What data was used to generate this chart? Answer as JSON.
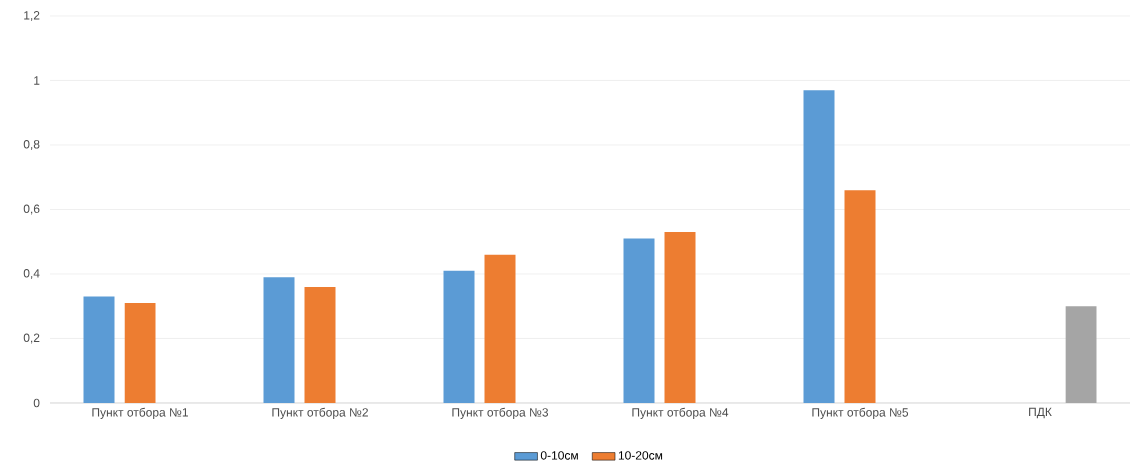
{
  "chart_data": {
    "type": "bar",
    "categories": [
      "Пункт отбора №1",
      "Пункт отбора №2",
      "Пункт отбора №3",
      "Пункт отбора №4",
      "Пункт отбора №5",
      "ПДК"
    ],
    "series": [
      {
        "name": "0-10см",
        "color": "#5b9bd5",
        "values": [
          0.33,
          0.39,
          0.41,
          0.51,
          0.97,
          null
        ]
      },
      {
        "name": "10-20см",
        "color": "#ed7d31",
        "values": [
          0.31,
          0.36,
          0.46,
          0.53,
          0.66,
          null
        ]
      },
      {
        "color": "#a5a5a5",
        "values": [
          null,
          null,
          null,
          null,
          null,
          0.3
        ]
      }
    ],
    "ylim": [
      0,
      1.2
    ],
    "yticks": [
      0,
      {
        "value": 0.2,
        "label": "0,2"
      },
      {
        "value": 0.4,
        "label": "0,4"
      },
      {
        "value": 0.6,
        "label": "0,6"
      },
      {
        "value": 0.8,
        "label": "0,8"
      },
      1,
      {
        "value": 1.2,
        "label": "1,2"
      }
    ],
    "grid": "y",
    "legend": "bottom"
  }
}
